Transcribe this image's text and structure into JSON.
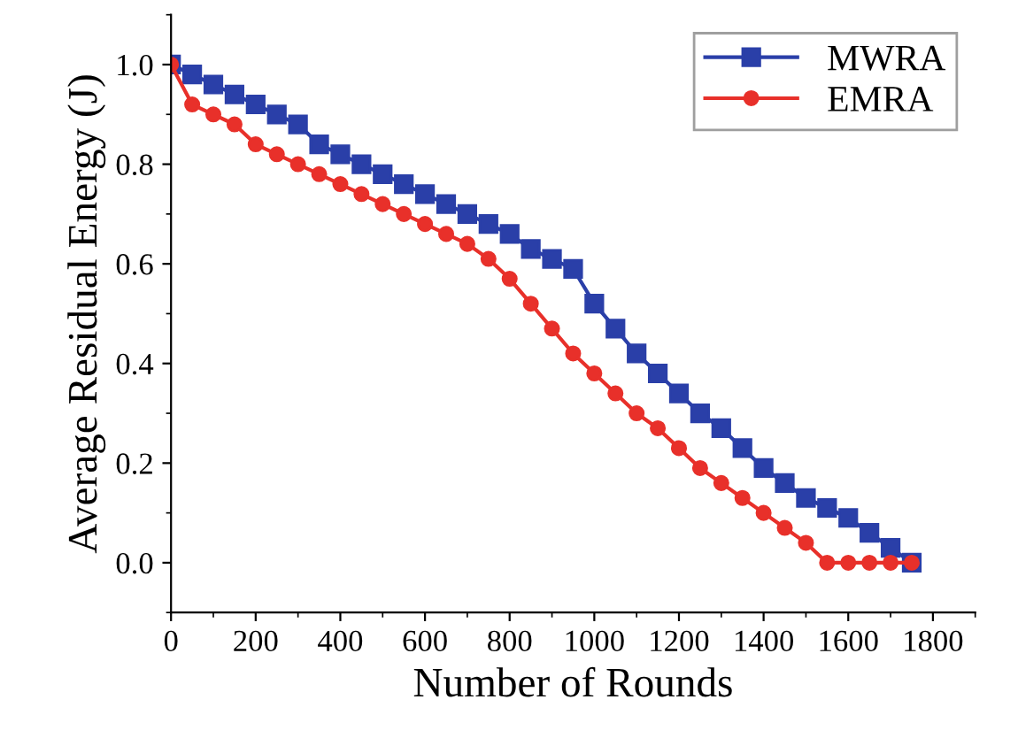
{
  "chart_data": {
    "type": "line",
    "xlabel": "Number of Rounds",
    "ylabel": "Average Residual Energy (J)",
    "x": [
      0,
      50,
      100,
      150,
      200,
      250,
      300,
      350,
      400,
      450,
      500,
      550,
      600,
      650,
      700,
      750,
      800,
      850,
      900,
      950,
      1000,
      1050,
      1100,
      1150,
      1200,
      1250,
      1300,
      1350,
      1400,
      1450,
      1500,
      1550,
      1600,
      1650,
      1700,
      1750
    ],
    "series": [
      {
        "name": "MWRA",
        "color": "#2a3fa8",
        "marker": "square",
        "values": [
          1.0,
          0.98,
          0.96,
          0.94,
          0.92,
          0.9,
          0.88,
          0.84,
          0.82,
          0.8,
          0.78,
          0.76,
          0.74,
          0.72,
          0.7,
          0.68,
          0.66,
          0.63,
          0.61,
          0.59,
          0.52,
          0.47,
          0.42,
          0.38,
          0.34,
          0.3,
          0.27,
          0.23,
          0.19,
          0.16,
          0.13,
          0.11,
          0.09,
          0.06,
          0.03,
          0.0
        ]
      },
      {
        "name": "EMRA",
        "color": "#e8302a",
        "marker": "circle",
        "values": [
          1.0,
          0.92,
          0.9,
          0.88,
          0.84,
          0.82,
          0.8,
          0.78,
          0.76,
          0.74,
          0.72,
          0.7,
          0.68,
          0.66,
          0.64,
          0.61,
          0.57,
          0.52,
          0.47,
          0.42,
          0.38,
          0.34,
          0.3,
          0.27,
          0.23,
          0.19,
          0.16,
          0.13,
          0.1,
          0.07,
          0.04,
          0.0,
          0.0,
          0.0,
          0.0,
          0.0
        ]
      }
    ],
    "xlim": [
      0,
      1900
    ],
    "xticks": [
      0,
      200,
      400,
      600,
      800,
      1000,
      1200,
      1400,
      1600,
      1800
    ],
    "ylim": [
      -0.1,
      1.1
    ],
    "yticks": [
      {
        "value": 0,
        "label": "0.0"
      },
      {
        "value": 0.2,
        "label": "0.2"
      },
      {
        "value": 0.4,
        "label": "0.4"
      },
      {
        "value": 0.6,
        "label": "0.6"
      },
      {
        "value": 0.8,
        "label": "0.8"
      },
      {
        "value": 1.0,
        "label": "1.0"
      }
    ],
    "grid": false,
    "legend": "top right",
    "line_style": "solid"
  }
}
